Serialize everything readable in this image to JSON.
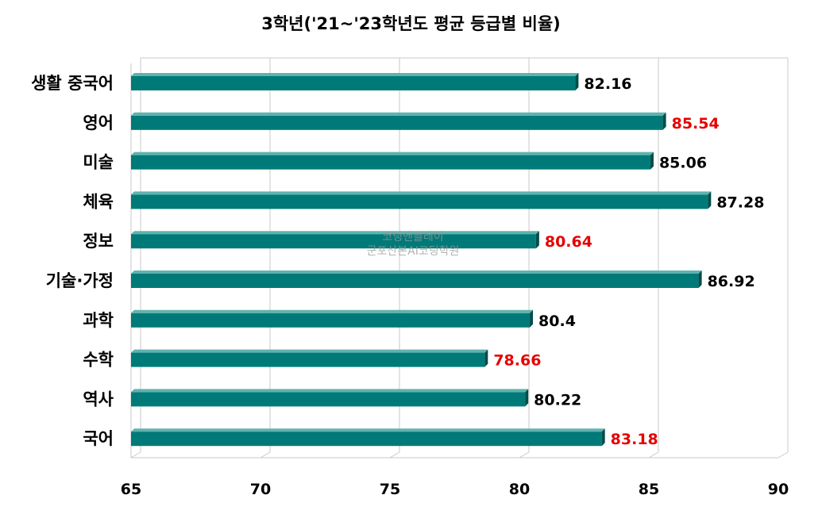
{
  "chart_data": {
    "type": "bar",
    "orientation": "horizontal",
    "title": "3학년('21~'23학년도 평균 등급별 비율)",
    "categories": [
      "생활 중국어",
      "영어",
      "미술",
      "체육",
      "정보",
      "기술·가정",
      "과학",
      "수학",
      "역사",
      "국어"
    ],
    "values": [
      82.16,
      85.54,
      85.06,
      87.28,
      80.64,
      86.92,
      80.4,
      78.66,
      80.22,
      83.18
    ],
    "value_labels": [
      "82.16",
      "85.54",
      "85.06",
      "87.28",
      "80.64",
      "86.92",
      "80.4",
      "78.66",
      "80.22",
      "83.18"
    ],
    "highlighted": [
      false,
      true,
      false,
      false,
      true,
      false,
      false,
      true,
      false,
      true
    ],
    "xlim": [
      65,
      90
    ],
    "xticks": [
      65,
      70,
      75,
      80,
      85,
      90
    ],
    "xlabel": "",
    "ylabel": "",
    "grid": true,
    "legend": "none"
  },
  "colors": {
    "bar_front": "#007A78",
    "bar_top": "#5FB3AE",
    "bar_side": "#004D4B",
    "grid": "#C8C8C8",
    "label_normal": "#000000",
    "label_highlight": "#E60000",
    "watermark": "#999999"
  },
  "watermark": {
    "line1": "코딩앤플레이",
    "line2": "군포산본AI코딩학원"
  }
}
